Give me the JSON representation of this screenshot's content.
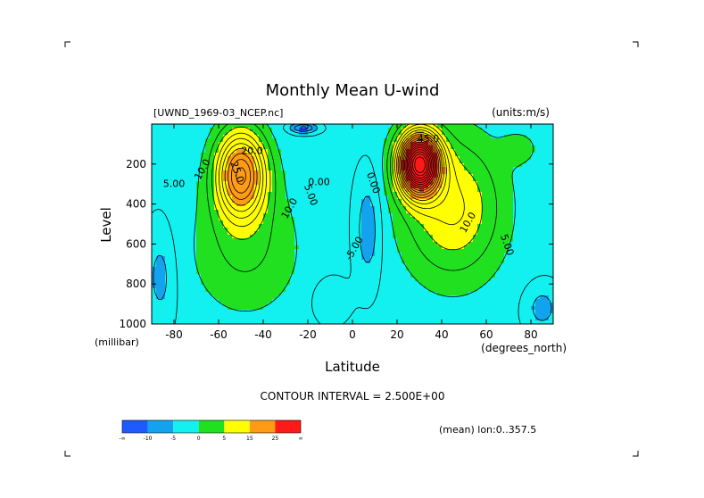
{
  "chart_data": {
    "type": "heatmap",
    "subtype": "filled contour (latitude-pressure cross section)",
    "title": "Monthly Mean U-wind",
    "dataset_label": "[UWND_1969-03_NCEP.nc]",
    "units_label": "(units:m/s)",
    "xlabel": "Latitude",
    "x_units_label": "(degrees_north)",
    "ylabel": "Level",
    "y_units_label": "(millibar)",
    "xlim": [
      -90,
      90
    ],
    "ylim": [
      1000,
      0
    ],
    "x_ticks": [
      -80,
      -60,
      -40,
      -20,
      0,
      20,
      40,
      60,
      80
    ],
    "y_ticks": [
      200,
      400,
      600,
      800,
      1000
    ],
    "contour_interval_text": "CONTOUR INTERVAL = 2.500E+00",
    "averaging_note": "(mean) lon:0..357.5",
    "colorbar": {
      "colors": [
        "#1e5aff",
        "#13a3ee",
        "#12f0ef",
        "#20e020",
        "#ffff00",
        "#ff9b14",
        "#ff1a1a"
      ],
      "tick_labels": [
        "-∞",
        "-10",
        "-5",
        "0",
        "5",
        "15",
        "25",
        "∞"
      ]
    },
    "contour_labels": [
      {
        "text": "20.0",
        "lat": -45,
        "p": 150
      },
      {
        "text": "25.0",
        "lat": -53,
        "p": 245
      },
      {
        "text": "10.0",
        "lat": -66,
        "p": 235
      },
      {
        "text": "5.00",
        "lat": -80,
        "p": 315
      },
      {
        "text": "10.0",
        "lat": -27,
        "p": 430
      },
      {
        "text": "5.00",
        "lat": -20,
        "p": 360
      },
      {
        "text": "0.00",
        "lat": -15,
        "p": 305
      },
      {
        "text": "0.00",
        "lat": 8,
        "p": 300
      },
      {
        "text": "-5.00",
        "lat": 2,
        "p": 630
      },
      {
        "text": "45.0",
        "lat": 34,
        "p": 90
      },
      {
        "text": "10.0",
        "lat": 53,
        "p": 500
      },
      {
        "text": "5.00",
        "lat": 68,
        "p": 610
      }
    ],
    "jets": [
      {
        "hemisphere": "south",
        "lat": -50,
        "p": 250,
        "max_u": 25
      },
      {
        "hemisphere": "north",
        "lat": 30,
        "p": 200,
        "max_u": 45
      }
    ]
  }
}
